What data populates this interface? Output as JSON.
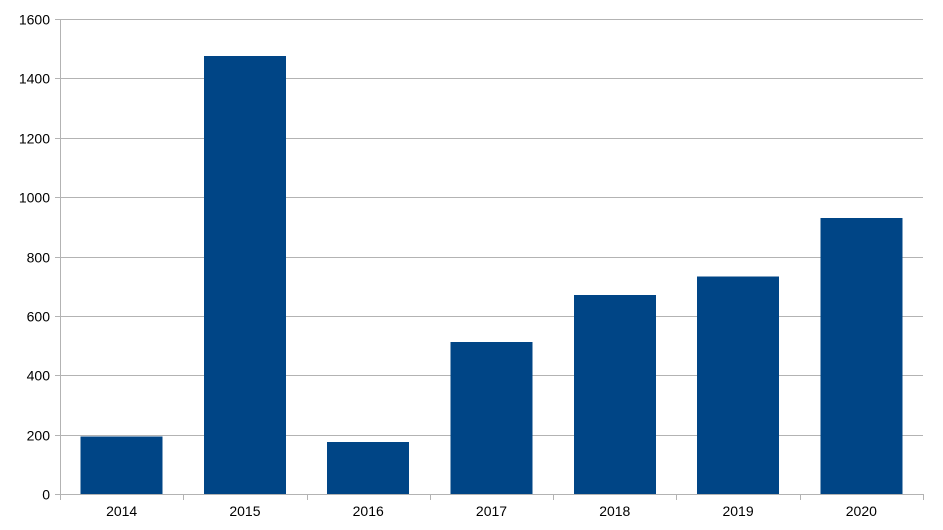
{
  "chart_data": {
    "type": "bar",
    "categories": [
      "2014",
      "2015",
      "2016",
      "2017",
      "2018",
      "2019",
      "2020"
    ],
    "values": [
      193,
      1476,
      176,
      512,
      670,
      732,
      930
    ],
    "ylim": [
      0,
      1600
    ],
    "y_ticks": [
      "0",
      "200",
      "400",
      "600",
      "800",
      "1000",
      "1200",
      "1400",
      "1600"
    ],
    "title": "",
    "xlabel": "",
    "ylabel": "",
    "grid": true,
    "legend": "none",
    "bar_color": "#004586",
    "grid_color": "#b3b3b3"
  }
}
